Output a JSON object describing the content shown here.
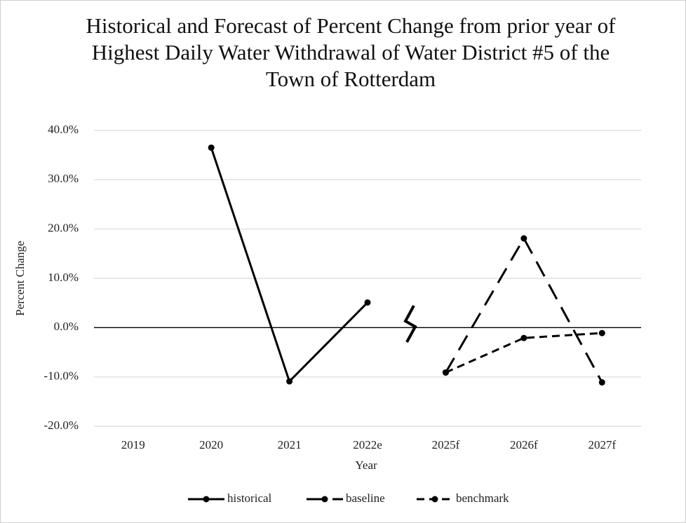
{
  "chart_data": {
    "type": "line",
    "title": "Historical and Forecast of Percent Change from prior year of Highest Daily Water Withdrawal of Water District #5 of the Town of Rotterdam",
    "x_label": "Year",
    "y_label": "Percent Change",
    "categories": [
      "2019",
      "2020",
      "2021",
      "2022e",
      "2025f",
      "2026f",
      "2027f"
    ],
    "series": [
      {
        "name": "historical",
        "color": "#000000",
        "dash": "solid",
        "values": [
          null,
          36.5,
          -10.9,
          5.1,
          null,
          null,
          null
        ]
      },
      {
        "name": "baseline",
        "color": "#000000",
        "dash": "long-dash",
        "values": [
          null,
          null,
          null,
          null,
          -9.1,
          18.1,
          -11.1
        ]
      },
      {
        "name": "benchmark",
        "color": "#000000",
        "dash": "dash",
        "values": [
          null,
          null,
          null,
          null,
          -9.1,
          -2.1,
          -1.1
        ]
      }
    ],
    "ylim": [
      -20,
      40
    ],
    "yticks": [
      {
        "value": -20,
        "label": "-20.0%"
      },
      {
        "value": -10,
        "label": "-10.0%"
      },
      {
        "value": 0,
        "label": "0.0%"
      },
      {
        "value": 10,
        "label": "10.0%"
      },
      {
        "value": 20,
        "label": "20.0%"
      },
      {
        "value": 30,
        "label": "30.0%"
      },
      {
        "value": 40,
        "label": "40.0%"
      }
    ],
    "grid": true,
    "legend": "bottom"
  }
}
